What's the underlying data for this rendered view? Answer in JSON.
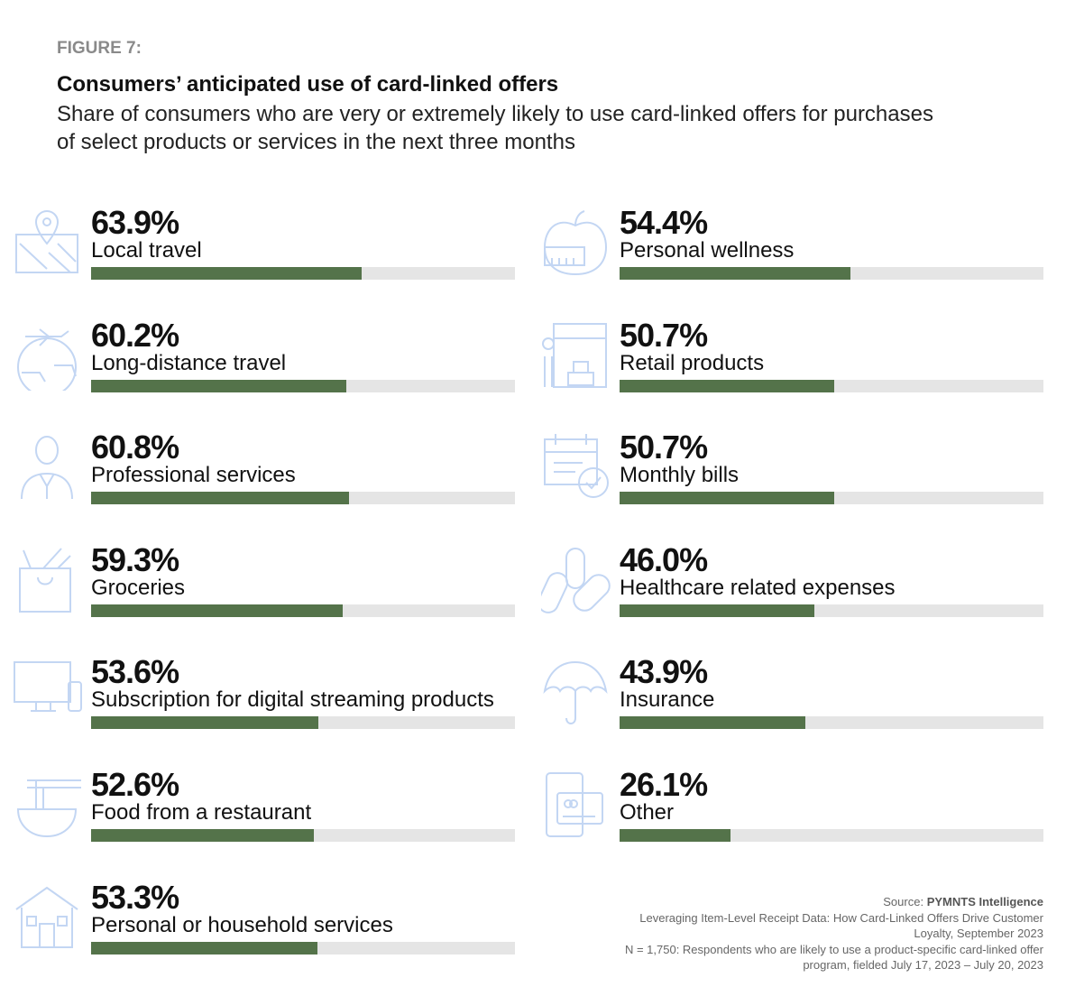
{
  "figure_label": "FIGURE 7:",
  "chart_data": {
    "type": "bar",
    "title": "Consumers’ anticipated use of card-linked offers",
    "subtitle": "Share of consumers who are very or extremely likely to use card-linked offers for purchases of select products or services in the next three months",
    "xlabel": "",
    "ylabel": "",
    "ylim": [
      0,
      100
    ],
    "categories": [
      "Local travel",
      "Long-distance travel",
      "Professional services",
      "Groceries",
      "Subscription for digital streaming products",
      "Food from a restaurant",
      "Personal or household services",
      "Personal wellness",
      "Retail products",
      "Monthly bills",
      "Healthcare related expenses",
      "Insurance",
      "Other"
    ],
    "values": [
      63.9,
      60.2,
      60.8,
      59.3,
      53.6,
      52.6,
      53.3,
      54.4,
      50.7,
      50.7,
      46.0,
      43.9,
      26.1
    ],
    "labels": [
      "63.9%",
      "60.2%",
      "60.8%",
      "59.3%",
      "53.6%",
      "52.6%",
      "53.3%",
      "54.4%",
      "50.7%",
      "50.7%",
      "46.0%",
      "43.9%",
      "26.1%"
    ],
    "icons": [
      "map-pin-icon",
      "plane-globe-icon",
      "professional-person-icon",
      "grocery-bag-icon",
      "tv-remote-icon",
      "noodle-bowl-icon",
      "house-icon",
      "apple-scale-icon",
      "storefront-icon",
      "calendar-check-icon",
      "pills-icon",
      "umbrella-icon",
      "phone-card-icon"
    ],
    "colors": {
      "bar": "#54734a",
      "track": "#e5e5e5",
      "icon": "#c3d6f3"
    }
  },
  "source": {
    "prefix": "Source: ",
    "name": "PYMNTS Intelligence",
    "report": "Leveraging Item-Level Receipt Data: How Card-Linked Offers Drive Customer Loyalty, September 2023",
    "note": "N = 1,750: Respondents who are likely to use a product-specific card-linked offer program, fielded July 17, 2023 – July 20, 2023"
  }
}
